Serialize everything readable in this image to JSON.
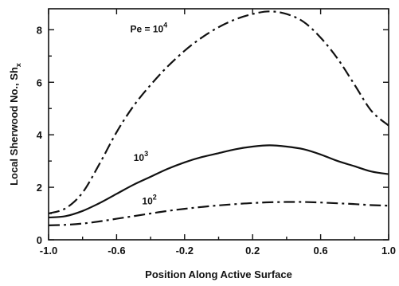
{
  "chart_data": {
    "type": "line",
    "xlabel": "Position Along Active Surface",
    "ylabel": "Local Sherwood No., Sh",
    "ylabel_subscript": "x",
    "xlim": [
      -1.0,
      1.0
    ],
    "ylim": [
      0,
      8.8
    ],
    "x_ticks": [
      -1.0,
      -0.6,
      -0.2,
      0.2,
      0.6,
      1.0
    ],
    "x_tick_labels": [
      "-1.0",
      "-0.6",
      "-0.2",
      "0.2",
      "0.6",
      "1.0"
    ],
    "y_ticks": [
      0,
      2,
      4,
      6,
      8
    ],
    "y_tick_labels": [
      "0",
      "2",
      "4",
      "6",
      "8"
    ],
    "grid": false,
    "series": [
      {
        "line_style": "dash-dot",
        "label_base": "Pe = 10",
        "label_exp": "4",
        "x": [
          -1.0,
          -0.9,
          -0.8,
          -0.7,
          -0.6,
          -0.5,
          -0.4,
          -0.3,
          -0.2,
          -0.1,
          0.0,
          0.1,
          0.2,
          0.3,
          0.4,
          0.5,
          0.6,
          0.7,
          0.8,
          0.9,
          1.0
        ],
        "y": [
          1.0,
          1.2,
          1.8,
          2.9,
          4.1,
          5.1,
          5.9,
          6.6,
          7.2,
          7.7,
          8.1,
          8.4,
          8.6,
          8.7,
          8.6,
          8.3,
          7.7,
          6.9,
          5.9,
          4.9,
          4.35
        ]
      },
      {
        "line_style": "solid",
        "label_base": "10",
        "label_exp": "3",
        "x": [
          -1.0,
          -0.9,
          -0.8,
          -0.7,
          -0.6,
          -0.5,
          -0.4,
          -0.3,
          -0.2,
          -0.1,
          0.0,
          0.1,
          0.2,
          0.3,
          0.4,
          0.5,
          0.6,
          0.7,
          0.8,
          0.9,
          1.0
        ],
        "y": [
          0.85,
          0.9,
          1.1,
          1.4,
          1.75,
          2.1,
          2.4,
          2.7,
          2.95,
          3.15,
          3.3,
          3.45,
          3.55,
          3.6,
          3.55,
          3.45,
          3.25,
          3.0,
          2.8,
          2.6,
          2.5
        ]
      },
      {
        "line_style": "dash-dot",
        "label_base": "10",
        "label_exp": "2",
        "x": [
          -1.0,
          -0.9,
          -0.8,
          -0.7,
          -0.6,
          -0.5,
          -0.4,
          -0.3,
          -0.2,
          -0.1,
          0.0,
          0.1,
          0.2,
          0.3,
          0.4,
          0.5,
          0.6,
          0.7,
          0.8,
          0.9,
          1.0
        ],
        "y": [
          0.55,
          0.57,
          0.62,
          0.7,
          0.8,
          0.9,
          1.0,
          1.1,
          1.18,
          1.25,
          1.31,
          1.36,
          1.4,
          1.43,
          1.44,
          1.44,
          1.42,
          1.39,
          1.36,
          1.32,
          1.3
        ]
      }
    ],
    "annotations": [
      {
        "series": 0,
        "base": "Pe = 10",
        "exp": "4",
        "x": -0.52,
        "y": 7.9
      },
      {
        "series": 1,
        "base": "10",
        "exp": "3",
        "x": -0.5,
        "y": 3.0
      },
      {
        "series": 2,
        "base": "10",
        "exp": "2",
        "x": -0.45,
        "y": 1.35
      }
    ]
  }
}
